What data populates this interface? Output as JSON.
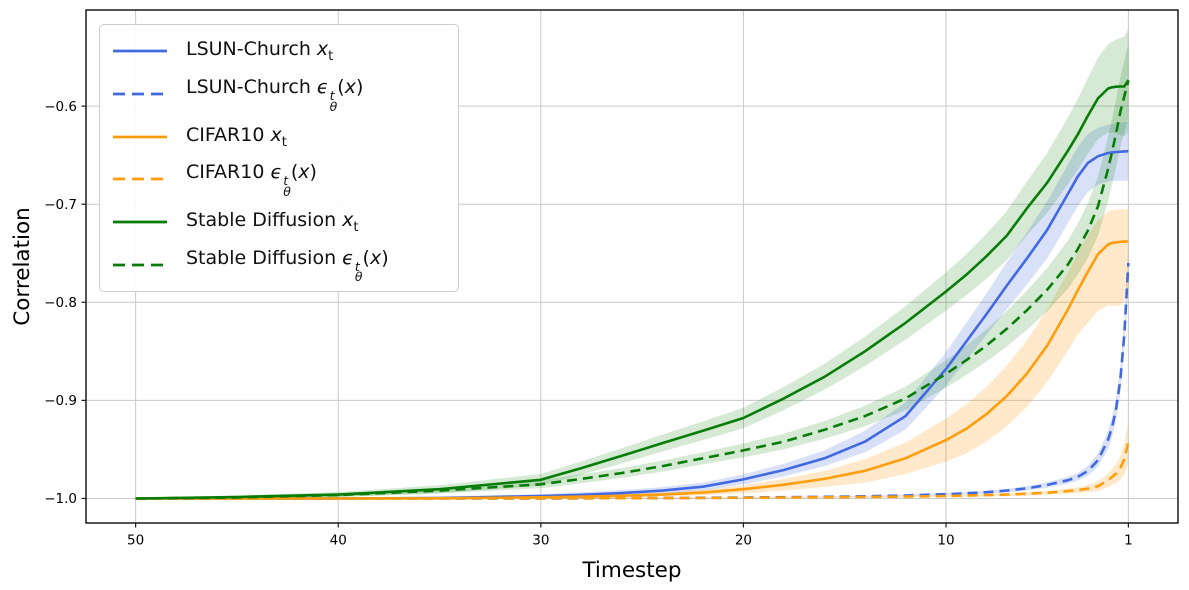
{
  "chart_data": {
    "type": "line",
    "title": "",
    "xlabel": "Timestep",
    "ylabel": "Correlation",
    "grid": true,
    "legend_position": "upper left",
    "x_axis": {
      "lim": [
        52.45,
        -1.45
      ],
      "reversed": true,
      "ticks": [
        {
          "v": 50,
          "label": "50"
        },
        {
          "v": 40,
          "label": "40"
        },
        {
          "v": 30,
          "label": "30"
        },
        {
          "v": 20,
          "label": "20"
        },
        {
          "v": 10,
          "label": "10"
        },
        {
          "v": 1,
          "label": "1"
        }
      ]
    },
    "y_axis": {
      "lim": [
        -1.025,
        -0.502
      ],
      "ticks": [
        {
          "v": -0.6,
          "label": "−0.6"
        },
        {
          "v": -0.7,
          "label": "−0.7"
        },
        {
          "v": -0.8,
          "label": "−0.8"
        },
        {
          "v": -0.9,
          "label": "−0.9"
        },
        {
          "v": -1.0,
          "label": "−1.0"
        }
      ]
    },
    "colors": {
      "lsun": "#4169e1",
      "cifar10": "#ff9d0d",
      "stable_diffusion": "#077d07",
      "grid": "#c9c9c9",
      "spine": "#1a1a1a"
    },
    "x": [
      50,
      45,
      40,
      35,
      30,
      28,
      26,
      24,
      22,
      20,
      18,
      16,
      14,
      12,
      10,
      9,
      8,
      7,
      6,
      5,
      4,
      3.5,
      3,
      2.5,
      2,
      1.8,
      1.6,
      1.4,
      1.2,
      1
    ],
    "series": [
      {
        "label": "LSUN-Church x_t",
        "dataset": "LSUN-Church",
        "math": "x_t",
        "color": "#4169e1",
        "style": "solid",
        "band_alpha": 0.2,
        "values": [
          -1.0,
          -1.0,
          -1.0,
          -0.9995,
          -0.9975,
          -0.9962,
          -0.9945,
          -0.992,
          -0.988,
          -0.9805,
          -0.971,
          -0.959,
          -0.942,
          -0.916,
          -0.868,
          -0.84,
          -0.812,
          -0.783,
          -0.755,
          -0.726,
          -0.69,
          -0.672,
          -0.658,
          -0.651,
          -0.6478,
          -0.6472,
          -0.6468,
          -0.6465,
          -0.6462,
          -0.646
        ],
        "band_hw": [
          0.0005,
          0.0008,
          0.001,
          0.0015,
          0.002,
          0.0025,
          0.003,
          0.0036,
          0.0042,
          0.005,
          0.0065,
          0.008,
          0.011,
          0.014,
          0.017,
          0.019,
          0.021,
          0.024,
          0.0265,
          0.029,
          0.03,
          0.03,
          0.0295,
          0.029,
          0.029,
          0.029,
          0.0292,
          0.0295,
          0.0298,
          0.03
        ]
      },
      {
        "label": "LSUN-Church eps_theta^t(x)",
        "dataset": "LSUN-Church",
        "math": "eps",
        "color": "#4169e1",
        "style": "dashed",
        "band_alpha": 0.2,
        "values": [
          -1.0,
          -1.0,
          -1.0,
          -1.0,
          -1.0,
          -0.9998,
          -0.9997,
          -0.9995,
          -0.9993,
          -0.999,
          -0.9987,
          -0.9983,
          -0.9978,
          -0.997,
          -0.9955,
          -0.9947,
          -0.9936,
          -0.992,
          -0.9896,
          -0.9862,
          -0.9815,
          -0.978,
          -0.972,
          -0.961,
          -0.94,
          -0.927,
          -0.908,
          -0.879,
          -0.833,
          -0.76
        ],
        "band_hw": [
          0.0003,
          0.0003,
          0.0003,
          0.0003,
          0.0003,
          0.0003,
          0.0003,
          0.0003,
          0.0003,
          0.0003,
          0.0004,
          0.0005,
          0.0006,
          0.0008,
          0.001,
          0.0012,
          0.0015,
          0.0018,
          0.0022,
          0.0028,
          0.0035,
          0.004,
          0.005,
          0.0065,
          0.009,
          0.01,
          0.0115,
          0.013,
          0.016,
          0.022
        ]
      },
      {
        "label": "CIFAR10 x_t",
        "dataset": "CIFAR10",
        "math": "x_t",
        "color": "#ff9d0d",
        "style": "solid",
        "band_alpha": 0.22,
        "values": [
          -1.0,
          -1.0,
          -1.0,
          -0.9998,
          -0.9988,
          -0.9982,
          -0.9973,
          -0.996,
          -0.994,
          -0.9905,
          -0.986,
          -0.98,
          -0.9718,
          -0.959,
          -0.9405,
          -0.929,
          -0.914,
          -0.8955,
          -0.8725,
          -0.844,
          -0.808,
          -0.788,
          -0.769,
          -0.751,
          -0.741,
          -0.7395,
          -0.7388,
          -0.7383,
          -0.7381,
          -0.738
        ],
        "band_upper_hw": [
          0.0003,
          0.0004,
          0.0006,
          0.0008,
          0.0012,
          0.0015,
          0.0018,
          0.0022,
          0.0028,
          0.004,
          0.006,
          0.008,
          0.012,
          0.016,
          0.022,
          0.025,
          0.028,
          0.031,
          0.034,
          0.037,
          0.038,
          0.038,
          0.037,
          0.035,
          0.0335,
          0.0333,
          0.0332,
          0.0331,
          0.033,
          0.033
        ],
        "band_lower_hw": [
          0.0003,
          0.0004,
          0.0006,
          0.0008,
          0.0012,
          0.0015,
          0.0018,
          0.0022,
          0.0028,
          0.004,
          0.006,
          0.008,
          0.012,
          0.016,
          0.022,
          0.025,
          0.028,
          0.031,
          0.034,
          0.037,
          0.042,
          0.045,
          0.052,
          0.058,
          0.062,
          0.064,
          0.065,
          0.065,
          0.06,
          0.045
        ]
      },
      {
        "label": "CIFAR10 eps_theta^t(x)",
        "dataset": "CIFAR10",
        "math": "eps",
        "color": "#ff9d0d",
        "style": "dashed",
        "band_alpha": 0.22,
        "values": [
          -1.0,
          -1.0,
          -1.0,
          -1.0,
          -0.9999,
          -0.9998,
          -0.9997,
          -0.9996,
          -0.9995,
          -0.9993,
          -0.9991,
          -0.9988,
          -0.9985,
          -0.9981,
          -0.9975,
          -0.9971,
          -0.9966,
          -0.996,
          -0.9952,
          -0.9941,
          -0.9925,
          -0.9915,
          -0.99,
          -0.9875,
          -0.9815,
          -0.978,
          -0.9745,
          -0.969,
          -0.96,
          -0.942
        ],
        "band_hw": [
          0.0003,
          0.0003,
          0.0003,
          0.0003,
          0.0003,
          0.0003,
          0.0003,
          0.0003,
          0.0003,
          0.0004,
          0.0004,
          0.0005,
          0.0006,
          0.0008,
          0.001,
          0.0011,
          0.0013,
          0.0015,
          0.0018,
          0.002,
          0.0025,
          0.003,
          0.0035,
          0.005,
          0.007,
          0.008,
          0.01,
          0.012,
          0.016,
          0.022
        ]
      },
      {
        "label": "Stable Diffusion x_t",
        "dataset": "Stable Diffusion",
        "math": "x_t",
        "color": "#077d07",
        "style": "solid",
        "band_alpha": 0.17,
        "values": [
          -1.0,
          -0.9985,
          -0.996,
          -0.9905,
          -0.981,
          -0.969,
          -0.9565,
          -0.9435,
          -0.931,
          -0.918,
          -0.898,
          -0.876,
          -0.85,
          -0.821,
          -0.789,
          -0.772,
          -0.753,
          -0.732,
          -0.704,
          -0.678,
          -0.646,
          -0.629,
          -0.61,
          -0.592,
          -0.582,
          -0.5808,
          -0.5802,
          -0.58,
          -0.58,
          -0.5735
        ],
        "band_hw": [
          0.0008,
          0.0015,
          0.0025,
          0.004,
          0.006,
          0.0068,
          0.0077,
          0.0086,
          0.0095,
          0.0105,
          0.0118,
          0.0132,
          0.015,
          0.017,
          0.0195,
          0.021,
          0.0228,
          0.025,
          0.0275,
          0.0305,
          0.034,
          0.036,
          0.0385,
          0.0415,
          0.045,
          0.0465,
          0.048,
          0.0495,
          0.051,
          0.052
        ]
      },
      {
        "label": "Stable Diffusion eps_theta^t(x)",
        "dataset": "Stable Diffusion",
        "math": "eps",
        "color": "#077d07",
        "style": "dashed",
        "band_alpha": 0.17,
        "values": [
          -1.0,
          -0.999,
          -0.9965,
          -0.992,
          -0.9855,
          -0.98,
          -0.974,
          -0.967,
          -0.959,
          -0.951,
          -0.942,
          -0.93,
          -0.916,
          -0.898,
          -0.873,
          -0.859,
          -0.844,
          -0.827,
          -0.808,
          -0.787,
          -0.762,
          -0.746,
          -0.727,
          -0.702,
          -0.664,
          -0.646,
          -0.627,
          -0.606,
          -0.59,
          -0.574
        ],
        "band_hw": [
          0.0005,
          0.001,
          0.0018,
          0.0028,
          0.004,
          0.0045,
          0.005,
          0.0056,
          0.0062,
          0.007,
          0.008,
          0.009,
          0.0105,
          0.012,
          0.014,
          0.015,
          0.0165,
          0.018,
          0.02,
          0.022,
          0.0245,
          0.026,
          0.028,
          0.03,
          0.0325,
          0.0335,
          0.0345,
          0.0355,
          0.0365,
          0.0375
        ]
      }
    ]
  }
}
